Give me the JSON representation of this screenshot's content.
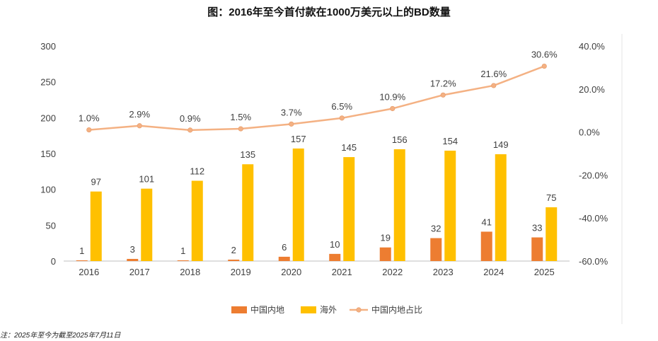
{
  "chart_data": {
    "type": "bar",
    "title": "图：2016年至今首付款在1000万美元以上的BD数量",
    "categories": [
      "2016",
      "2017",
      "2018",
      "2019",
      "2020",
      "2021",
      "2022",
      "2023",
      "2024",
      "2025"
    ],
    "series": [
      {
        "name": "中国内地",
        "kind": "bar",
        "axis": "left",
        "color": "#ED7D31",
        "values": [
          1,
          3,
          1,
          2,
          6,
          10,
          19,
          32,
          41,
          33
        ]
      },
      {
        "name": "海外",
        "kind": "bar",
        "axis": "left",
        "color": "#FFC000",
        "values": [
          97,
          101,
          112,
          135,
          157,
          145,
          156,
          154,
          149,
          75
        ]
      },
      {
        "name": "中国内地占比",
        "kind": "line",
        "axis": "right",
        "color": "#F4B183",
        "values": [
          1.0,
          2.9,
          0.9,
          1.5,
          3.7,
          6.5,
          10.9,
          17.2,
          21.6,
          30.6
        ],
        "labels": [
          "1.0%",
          "2.9%",
          "0.9%",
          "1.5%",
          "3.7%",
          "6.5%",
          "10.9%",
          "17.2%",
          "21.6%",
          "30.6%"
        ]
      }
    ],
    "y_left": {
      "min": 0,
      "max": 300,
      "ticks": [
        "0",
        "50",
        "100",
        "150",
        "200",
        "250",
        "300"
      ]
    },
    "y_right": {
      "min": -60,
      "max": 40,
      "ticks": [
        "-60.0%",
        "-40.0%",
        "-20.0%",
        "0.0%",
        "20.0%",
        "40.0%"
      ]
    },
    "legend": [
      "中国内地",
      "海外",
      "中国内地占比"
    ],
    "legend_position": "bottom",
    "grid": false
  },
  "footnote": "注：2025年至今为截至2025年7月11日"
}
